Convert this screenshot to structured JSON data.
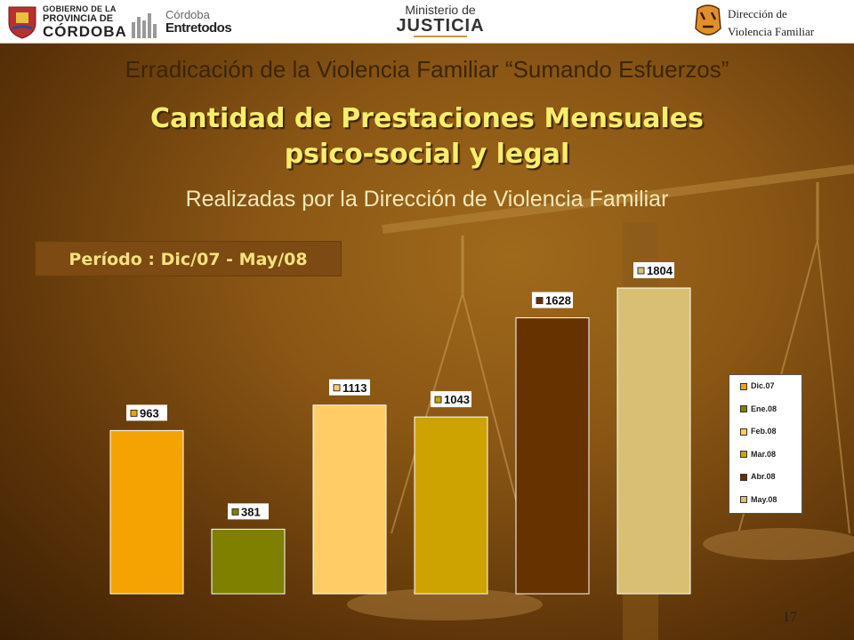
{
  "header": {
    "gobierno_line1": "GOBIERNO DE LA",
    "gobierno_line2": "PROVINCIA DE",
    "gobierno_line3": "CÓRDOBA",
    "cordoba_brand": "Córdoba",
    "entre_todos": "Entretodos",
    "ministerio_line1": "Ministerio de",
    "ministerio_line2": "JUSTICIA",
    "direccion_line1": "Dirección de",
    "direccion_line2": "Violencia Familiar"
  },
  "slide": {
    "program_title": "Erradicación de la Violencia Familiar “Sumando Esfuerzos”",
    "title_line1": "Cantidad de Prestaciones Mensuales",
    "title_line2": "psico-social y legal",
    "subtitle": "Realizadas por la Dirección de Violencia Familiar",
    "period_label": "Período : Dic/07 - May/08",
    "page_number": "17"
  },
  "chart_data": {
    "type": "bar",
    "categories": [
      "Dic.07",
      "Ene.08",
      "Feb.08",
      "Mar.08",
      "Abr.08",
      "May.08"
    ],
    "values": [
      963,
      381,
      1113,
      1043,
      1628,
      1804
    ],
    "colors": [
      "#f5a300",
      "#7f7f00",
      "#ffcc66",
      "#cca300",
      "#663300",
      "#d9bf73"
    ],
    "legend_position": "right",
    "grid": false
  }
}
